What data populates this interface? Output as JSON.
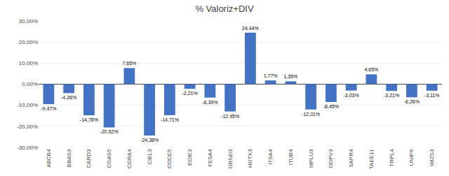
{
  "chart_data": {
    "type": "bar",
    "title": "% Valoriz+DIV",
    "categories": [
      "ABCB4",
      "BBAS3",
      "CARD3",
      "CGAS5",
      "CGRA4",
      "CIEL3",
      "COCE5",
      "EGIE3",
      "FESA4",
      "GRND3",
      "HGTX3",
      "ITSA4",
      "ITUB4",
      "MPLU3",
      "ODPV3",
      "SAPR4",
      "TAEE11",
      "TRPL4",
      "UNIP6",
      "WIZS3"
    ],
    "values": [
      -9.47,
      -4.26,
      -14.78,
      -20.52,
      7.65,
      -24.38,
      -14.71,
      -2.21,
      -6.39,
      -12.95,
      24.44,
      1.77,
      1.35,
      -12.01,
      -8.45,
      -3.03,
      4.65,
      -3.21,
      -6.26,
      -3.11
    ],
    "value_labels": [
      "-9,47%",
      "-4,26%",
      "-14,78%",
      "-20,52%",
      "7,65%",
      "-24,38%",
      "-14,71%",
      "-2,21%",
      "-6,39%",
      "-12,95%",
      "24,44%",
      "1,77%",
      "1,35%",
      "-12,01%",
      "-8,45%",
      "-3,03%",
      "4,65%",
      "-3,21%",
      "-6,26%",
      "-3,11%"
    ],
    "data_labels": true,
    "color": "#4472C4",
    "ylim": [
      -30,
      30
    ],
    "yticks": [
      {
        "value": -30,
        "label": "-30,00%"
      },
      {
        "value": -20,
        "label": "-20,00%"
      },
      {
        "value": -10,
        "label": "-10,00%"
      },
      {
        "value": 0,
        "label": "0,00%"
      },
      {
        "value": 10,
        "label": "10,00%"
      },
      {
        "value": 20,
        "label": "20,00%"
      },
      {
        "value": 30,
        "label": "30,00%"
      }
    ],
    "grid": true
  }
}
